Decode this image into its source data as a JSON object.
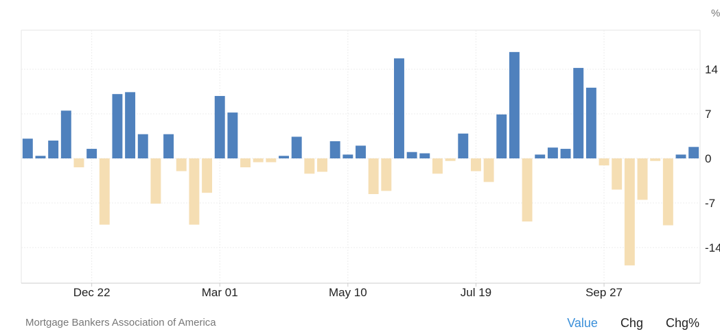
{
  "chart_data": {
    "type": "bar",
    "unit": "%",
    "xlabel": "",
    "ylabel": "",
    "ylim": [
      -18.5,
      20
    ],
    "yticks": [
      14,
      7,
      0,
      -7,
      -14
    ],
    "ytick_labels": [
      "14",
      "7",
      "0",
      "-7",
      "-14"
    ],
    "xtick_labels": [
      "Dec 22",
      "Mar 01",
      "May 10",
      "Jul 19",
      "Sep 27"
    ],
    "xtick_index": [
      5,
      15,
      25,
      35,
      45
    ],
    "grid": true,
    "positive_color": "#4f81bd",
    "negative_color": "#f5deb3",
    "values": [
      3.1,
      0.4,
      2.8,
      7.5,
      -1.4,
      1.5,
      -10.4,
      10.1,
      10.4,
      3.8,
      -7.1,
      3.8,
      -2.0,
      -10.4,
      -5.4,
      9.8,
      7.2,
      -1.4,
      -0.6,
      -0.6,
      0.4,
      3.4,
      -2.4,
      -2.1,
      2.7,
      0.6,
      2.0,
      -5.6,
      -5.1,
      15.7,
      1.0,
      0.8,
      -2.4,
      -0.4,
      3.9,
      -2.0,
      -3.7,
      6.9,
      16.7,
      -9.9,
      0.6,
      1.7,
      1.5,
      14.2,
      11.1,
      -1.1,
      -4.9,
      -16.8,
      -6.5,
      -0.4,
      -10.5,
      0.6,
      1.8
    ]
  },
  "footer": {
    "source": "Mortgage Bankers Association of America",
    "tabs": [
      "Value",
      "Chg",
      "Chg%"
    ]
  }
}
